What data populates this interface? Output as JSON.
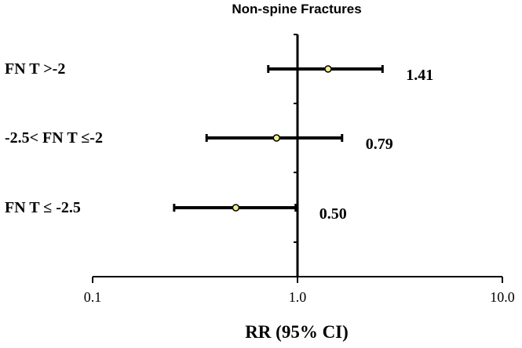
{
  "chart_data": {
    "type": "forest",
    "title": "Non-spine Fractures",
    "xlabel": "RR (95% CI)",
    "xscale": "log",
    "xlim": [
      0.1,
      10.0
    ],
    "x_ticks": [
      0.1,
      1.0,
      10.0
    ],
    "x_tick_labels": [
      "0.1",
      "1.0",
      "10.0"
    ],
    "reference_line": 1.0,
    "rows": [
      {
        "label": "FN T >-2",
        "estimate": 1.41,
        "lower": 0.72,
        "upper": 2.6,
        "value_label": "1.41"
      },
      {
        "label": "-2.5< FN T ≤-2",
        "estimate": 0.79,
        "lower": 0.36,
        "upper": 1.65,
        "value_label": "0.79"
      },
      {
        "label": "FN T ≤ -2.5",
        "estimate": 0.5,
        "lower": 0.25,
        "upper": 0.98,
        "value_label": "0.50"
      }
    ],
    "grid": false,
    "legend": "none",
    "colors": {
      "axis": "#000000",
      "error_bar": "#000000",
      "point_fill": "#f2ee8c",
      "point_stroke": "#000000"
    }
  }
}
